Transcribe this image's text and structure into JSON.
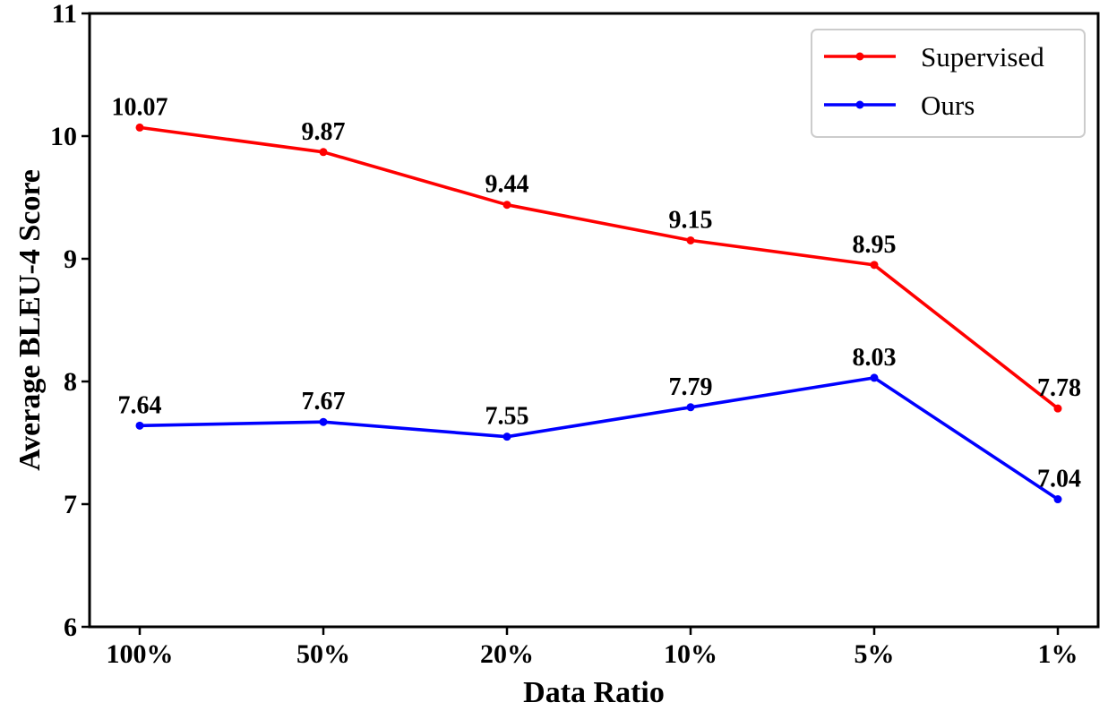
{
  "chart_data": {
    "type": "line",
    "categories": [
      "100%",
      "50%",
      "20%",
      "10%",
      "5%",
      "1%"
    ],
    "series": [
      {
        "name": "Supervised",
        "color": "#ff0000",
        "values": [
          10.07,
          9.87,
          9.44,
          9.15,
          8.95,
          7.78
        ],
        "labels": [
          "10.07",
          "9.87",
          "9.44",
          "9.15",
          "8.95",
          "7.78"
        ]
      },
      {
        "name": "Ours",
        "color": "#0000ff",
        "values": [
          7.64,
          7.67,
          7.55,
          7.79,
          8.03,
          7.04
        ],
        "labels": [
          "7.64",
          "7.67",
          "7.55",
          "7.79",
          "8.03",
          "7.04"
        ]
      }
    ],
    "xlabel": "Data Ratio",
    "ylabel": "Average BLEU-4 Score",
    "ylim": [
      6,
      11
    ],
    "yticks": [
      "6",
      "7",
      "8",
      "9",
      "10",
      "11"
    ],
    "grid": false,
    "legend_position": "top-right"
  }
}
